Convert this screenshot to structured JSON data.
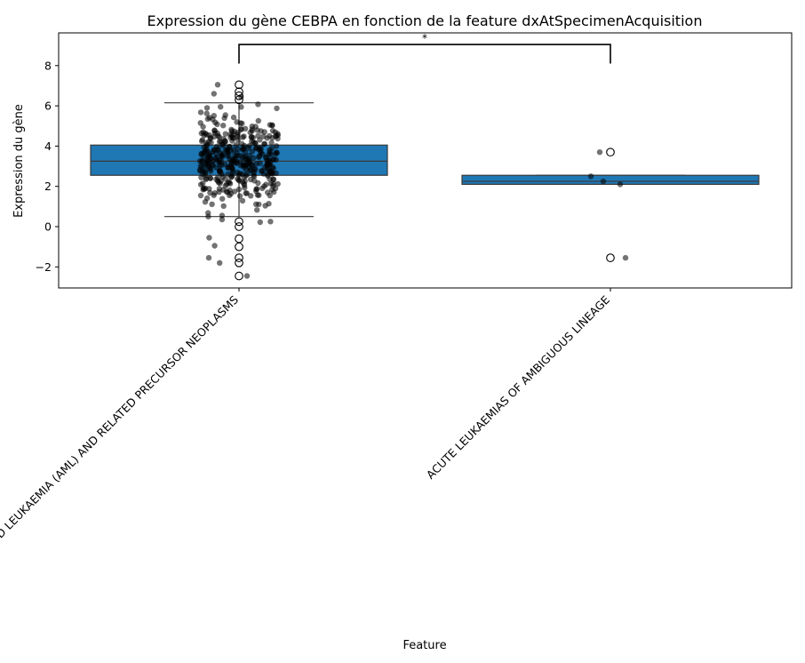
{
  "chart_data": {
    "type": "box",
    "title": "Expression du gène CEBPA en fonction de la feature dxAtSpecimenAcquisition",
    "xlabel": "Feature",
    "ylabel": "Expression du gène",
    "ylim": [
      -3.0,
      9.5
    ],
    "yticks": [
      -2,
      0,
      2,
      4,
      6,
      8
    ],
    "grid": false,
    "box_color": "#1f77b4",
    "point_color": "#000000",
    "categories": [
      "ACUTE MYELOID LEUKAEMIA (AML) AND RELATED PRECURSOR NEOPLASMS",
      "ACUTE LEUKAEMIAS OF AMBIGUOUS LINEAGE"
    ],
    "boxes": [
      {
        "category": "ACUTE MYELOID LEUKAEMIA (AML) AND RELATED PRECURSOR NEOPLASMS",
        "q1": 2.55,
        "median": 3.25,
        "q3": 4.05,
        "whisker_low": 0.5,
        "whisker_high": 6.15,
        "outliers": [
          7.05,
          6.7,
          6.5,
          6.3,
          0.25,
          0.0,
          -0.6,
          -1.0,
          -1.55,
          -1.8,
          -2.45
        ]
      },
      {
        "category": "ACUTE LEUKAEMIAS OF AMBIGUOUS LINEAGE",
        "q1": 2.1,
        "median": 2.25,
        "q3": 2.55,
        "whisker_low": 2.1,
        "whisker_high": 2.55,
        "outliers": [
          3.7,
          -1.55
        ]
      }
    ],
    "points": [
      {
        "category": "ACUTE LEUKAEMIAS OF AMBIGUOUS LINEAGE",
        "values": [
          3.7,
          2.5,
          2.25,
          2.1,
          -1.55
        ]
      }
    ],
    "annotations": [
      {
        "text": "*",
        "between": [
          0,
          1
        ],
        "y": 9.05
      }
    ]
  }
}
